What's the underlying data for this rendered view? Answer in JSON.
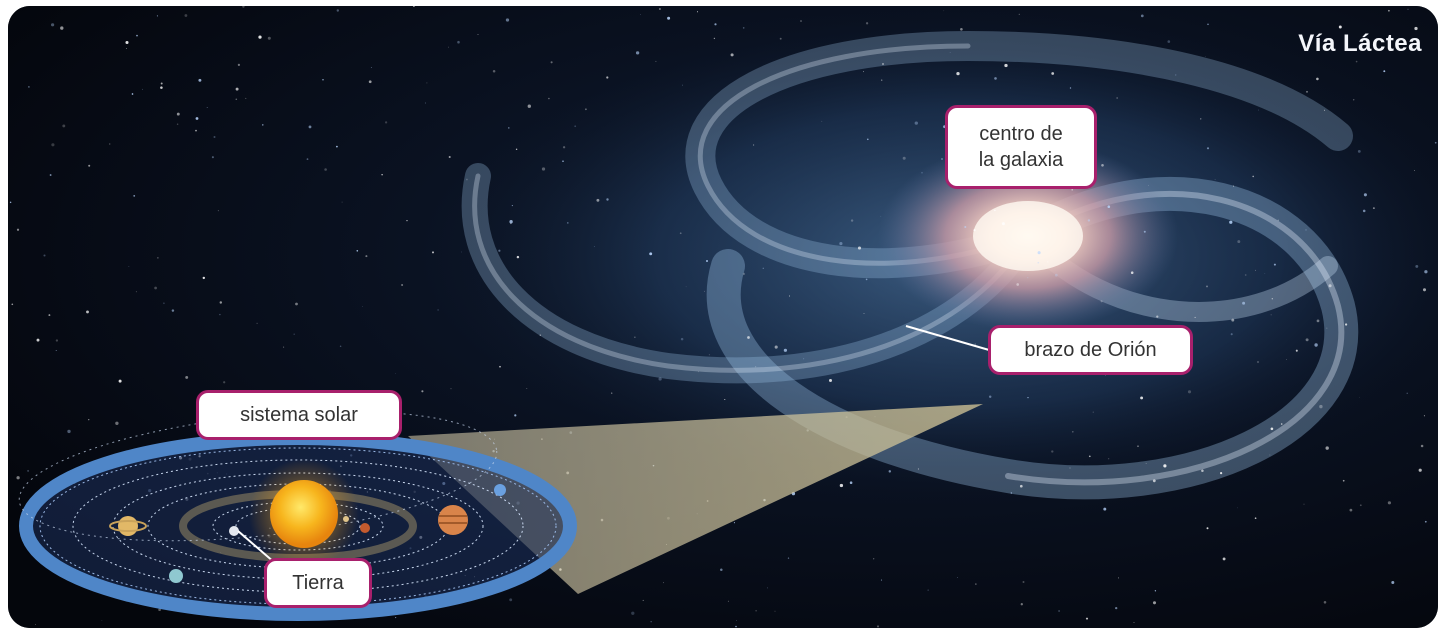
{
  "title": "Vía Láctea",
  "labels": {
    "center": "centro de\nla galaxia",
    "orion_arm": "brazo de Orión",
    "solar_system": "sistema solar",
    "earth": "Tierra"
  },
  "colors": {
    "label_border": "#a8206c",
    "label_background": "#ffffff",
    "space_background": "#060912",
    "title_text": "#f4f6fb"
  }
}
